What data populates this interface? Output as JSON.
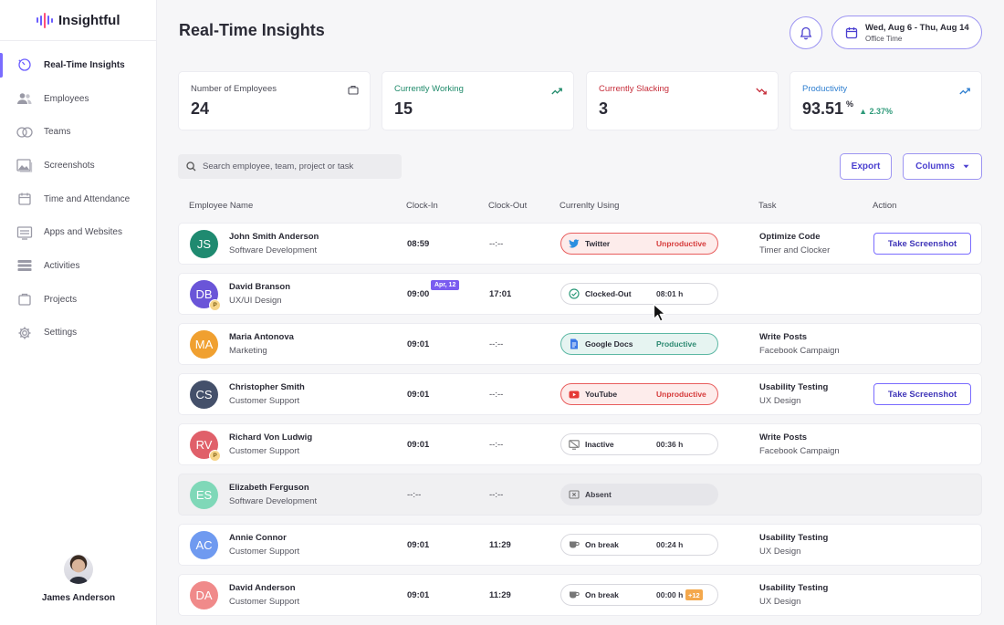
{
  "brand": {
    "name": "Insightful"
  },
  "sidebar": {
    "items": [
      {
        "label": "Real-Time Insights",
        "icon": "gauge-icon",
        "active": true
      },
      {
        "label": "Employees",
        "icon": "people-icon"
      },
      {
        "label": "Teams",
        "icon": "teams-icon"
      },
      {
        "label": "Screenshots",
        "icon": "image-icon"
      },
      {
        "label": "Time and Attendance",
        "icon": "calendar-icon"
      },
      {
        "label": "Apps and Websites",
        "icon": "window-icon"
      },
      {
        "label": "Activities",
        "icon": "list-icon"
      },
      {
        "label": "Projects",
        "icon": "folder-icon"
      },
      {
        "label": "Settings",
        "icon": "gear-icon"
      }
    ],
    "user": {
      "name": "James Anderson"
    }
  },
  "header": {
    "title": "Real-Time Insights",
    "date_range": "Wed, Aug 6 - Thu, Aug 14",
    "date_sub": "Office Time"
  },
  "cards": [
    {
      "label": "Number of Employees",
      "value": "24",
      "icon": "briefcase-icon",
      "color": "#4d4d58"
    },
    {
      "label": "Currently Working",
      "value": "15",
      "icon": "trend-up-icon",
      "color": "#1f8a6a"
    },
    {
      "label": "Currently Slacking",
      "value": "3",
      "icon": "trend-down-icon",
      "color": "#c62d3a"
    },
    {
      "label": "Productivity",
      "value": "93.51",
      "unit": "%",
      "delta": "▲ 2.37%",
      "icon": "trend-up-icon",
      "color": "#2f7fd0"
    }
  ],
  "toolbar": {
    "search_placeholder": "Search employee, team, project or task",
    "export_label": "Export",
    "columns_label": "Columns"
  },
  "table": {
    "headers": [
      "Employee Name",
      "Clock-In",
      "Clock-Out",
      "Currenlty Using",
      "Task",
      "Action"
    ],
    "rows": [
      {
        "initials": "JS",
        "color": "#1f8a70",
        "name": "John Smith Anderson",
        "dept": "Software Development",
        "clock_in": "08:59",
        "clock_out": "--:--",
        "app": "Twitter",
        "app_kind": "unprod",
        "app_icon": "twitter-icon",
        "app_status": "Unproductive",
        "task_title": "Optimize Code",
        "task_sub": "Timer and Clocker",
        "action": "Take Screenshot"
      },
      {
        "initials": "DB",
        "color": "#6a55d8",
        "badge": "P",
        "name": "David Branson",
        "dept": "UX/UI Design",
        "clock_in": "09:00",
        "date_badge": "Apr, 12",
        "clock_out": "17:01",
        "app": "Clocked-Out",
        "app_kind": "neutral",
        "app_icon": "check-circle-icon",
        "app_dur": "08:01 h",
        "task_title": "",
        "task_sub": "",
        "action": ""
      },
      {
        "initials": "MA",
        "color": "#f0a030",
        "name": "Maria Antonova",
        "dept": "Marketing",
        "clock_in": "09:01",
        "clock_out": "--:--",
        "app": "Google Docs",
        "app_kind": "prod",
        "app_icon": "docs-icon",
        "app_status": "Productive",
        "task_title": "Write Posts",
        "task_sub": "Facebook Campaign",
        "action": ""
      },
      {
        "initials": "CS",
        "color": "#44506a",
        "name": "Christopher Smith",
        "dept": "Customer Support",
        "clock_in": "09:01",
        "clock_out": "--:--",
        "app": "YouTube",
        "app_kind": "unprod",
        "app_icon": "youtube-icon",
        "app_status": "Unproductive",
        "task_title": "Usability Testing",
        "task_sub": "UX Design",
        "action": "Take Screenshot"
      },
      {
        "initials": "RV",
        "color": "#e0606a",
        "badge": "P",
        "name": "Richard Von Ludwig",
        "dept": "Customer Support",
        "clock_in": "09:01",
        "clock_out": "--:--",
        "app": "Inactive",
        "app_kind": "neutral",
        "app_icon": "inactive-icon",
        "app_dur": "00:36 h",
        "task_title": "Write Posts",
        "task_sub": "Facebook Campaign",
        "action": ""
      },
      {
        "initials": "ES",
        "color": "#7fd8b8",
        "name": "Elizabeth Ferguson",
        "dept": "Software Development",
        "clock_in": "--:--",
        "clock_out": "--:--",
        "app": "Absent",
        "app_kind": "absent",
        "app_icon": "absent-icon",
        "task_title": "",
        "task_sub": "",
        "action": "",
        "absent": true
      },
      {
        "initials": "AC",
        "color": "#6f9af0",
        "name": "Annie Connor",
        "dept": "Customer Support",
        "clock_in": "09:01",
        "clock_out": "11:29",
        "app": "On break",
        "app_kind": "neutral",
        "app_icon": "coffee-icon",
        "app_dur": "00:24 h",
        "task_title": "Usability Testing",
        "task_sub": "UX Design",
        "action": ""
      },
      {
        "initials": "DA",
        "color": "#f08a8a",
        "name": "David Anderson",
        "dept": "Customer Support",
        "clock_in": "09:01",
        "clock_out": "11:29",
        "app": "On break",
        "app_kind": "neutral",
        "app_icon": "coffee-icon",
        "app_dur": "00:00 h",
        "app_extra": "+12",
        "task_title": "Usability Testing",
        "task_sub": "UX Design",
        "action": ""
      }
    ]
  }
}
